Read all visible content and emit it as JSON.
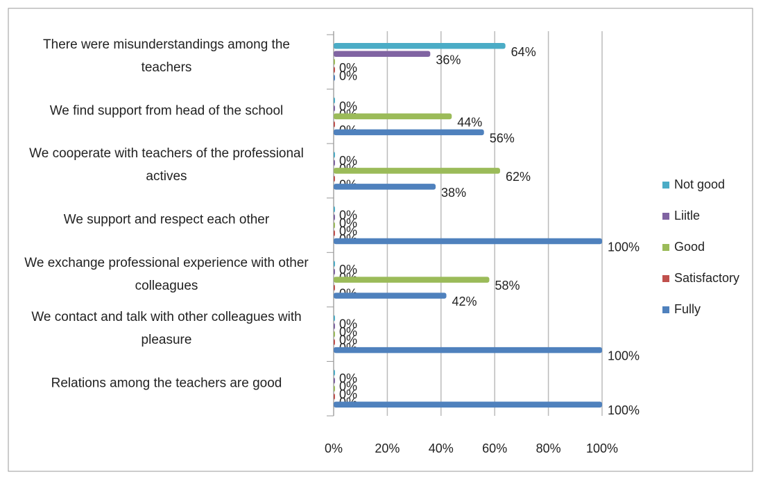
{
  "chart_data": {
    "type": "bar",
    "orientation": "horizontal",
    "categories": [
      "Relations among the teachers are good",
      "We contact and talk with other colleagues with pleasure",
      "We exchange professional experience with other colleagues",
      "We support and respect each other",
      "We cooperate with teachers of the professional actives",
      "We find support from head of the school",
      "There were misunderstandings among the teachers"
    ],
    "series": [
      {
        "name": "Not good",
        "color": "#4bacc6",
        "values": [
          0,
          0,
          0,
          0,
          0,
          0,
          64
        ],
        "value_labels": [
          "0%",
          "0%",
          "0%",
          "0%",
          "0%",
          "0%",
          "64%"
        ]
      },
      {
        "name": "Liitle",
        "color": "#8064a2",
        "values": [
          0,
          0,
          0,
          0,
          0,
          0,
          36
        ],
        "value_labels": [
          "0%",
          "0%",
          "0%",
          "0%",
          "0%",
          "0%",
          "36%"
        ]
      },
      {
        "name": "Good",
        "color": "#9bbb59",
        "values": [
          0,
          0,
          58,
          0,
          62,
          44,
          0
        ],
        "value_labels": [
          "0%",
          "0%",
          "58%",
          "0%",
          "62%",
          "44%",
          "0%"
        ]
      },
      {
        "name": "Satisfactory",
        "color": "#c0504d",
        "values": [
          0,
          0,
          0,
          0,
          0,
          0,
          0
        ],
        "value_labels": [
          "0%",
          "0%",
          "0%",
          "0%",
          "0%",
          "0%",
          "0%"
        ]
      },
      {
        "name": "Fully",
        "color": "#4f81bd",
        "values": [
          100,
          100,
          42,
          100,
          38,
          56,
          0
        ],
        "value_labels": [
          "100%",
          "100%",
          "42%",
          "100%",
          "38%",
          "56%",
          null
        ]
      }
    ],
    "xlim": [
      0,
      100
    ],
    "xticks": [
      {
        "value": 0,
        "label": "0%"
      },
      {
        "value": 20,
        "label": "20%"
      },
      {
        "value": 40,
        "label": "40%"
      },
      {
        "value": 60,
        "label": "60%"
      },
      {
        "value": 80,
        "label": "80%"
      },
      {
        "value": 100,
        "label": "100%"
      }
    ],
    "grid": true,
    "legend": "right"
  }
}
